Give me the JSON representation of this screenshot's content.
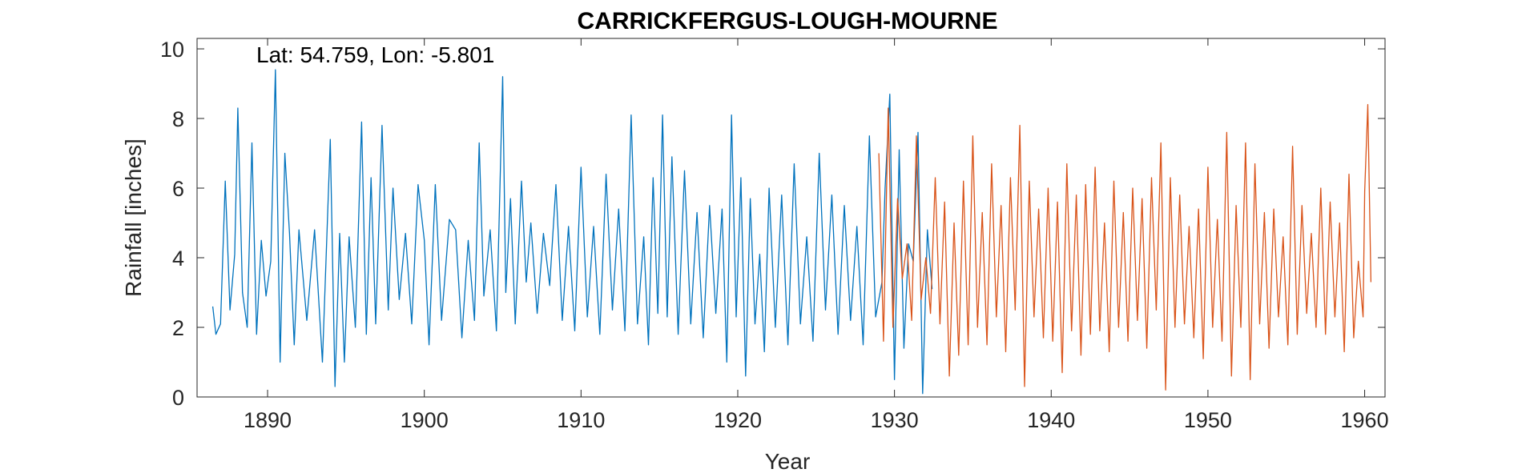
{
  "chart_data": {
    "type": "line",
    "title": "CARRICKFERGUS-LOUGH-MOURNE",
    "xlabel": "Year",
    "ylabel": "Rainfall [inches]",
    "annotation": "Lat: 54.759, Lon: -5.801",
    "xlim": [
      1885.5,
      1961.3
    ],
    "ylim": [
      0,
      10.3
    ],
    "x_ticks": [
      1890,
      1900,
      1910,
      1920,
      1930,
      1940,
      1950,
      1960
    ],
    "y_ticks": [
      0,
      2,
      4,
      6,
      8,
      10
    ],
    "grid": false,
    "legend": "none",
    "colors": {
      "series_1": "#0072bd",
      "series_2": "#d95319",
      "axes": "#262626"
    },
    "series": [
      {
        "x": [
          1886.5,
          1886.7,
          1887.0,
          1887.3,
          1887.6,
          1887.9,
          1888.1,
          1888.4,
          1888.7,
          1889.0,
          1889.3,
          1889.6,
          1889.9,
          1890.2,
          1890.5,
          1890.8,
          1891.1,
          1891.4,
          1891.7,
          1892.0,
          1892.5,
          1893.0,
          1893.5,
          1894.0,
          1894.3,
          1894.6,
          1894.9,
          1895.2,
          1895.6,
          1896.0,
          1896.3,
          1896.6,
          1896.9,
          1897.3,
          1897.7,
          1898.0,
          1898.4,
          1898.8,
          1899.2,
          1899.6,
          1900.0,
          1900.3,
          1900.7,
          1901.1,
          1901.6,
          1902.0,
          1902.4,
          1902.8,
          1903.2,
          1903.5,
          1903.8,
          1904.2,
          1904.6,
          1905.0,
          1905.2,
          1905.5,
          1905.8,
          1906.2,
          1906.5,
          1906.8,
          1907.2,
          1907.6,
          1908.0,
          1908.4,
          1908.8,
          1909.2,
          1909.6,
          1910.0,
          1910.4,
          1910.8,
          1911.2,
          1911.6,
          1912.0,
          1912.4,
          1912.8,
          1913.2,
          1913.6,
          1914.0,
          1914.3,
          1914.6,
          1914.9,
          1915.2,
          1915.5,
          1915.8,
          1916.2,
          1916.6,
          1917.0,
          1917.4,
          1917.8,
          1918.2,
          1918.6,
          1919.0,
          1919.3,
          1919.6,
          1919.9,
          1920.2,
          1920.5,
          1920.8,
          1921.1,
          1921.4,
          1921.7,
          1922.0,
          1922.4,
          1922.8,
          1923.2,
          1923.6,
          1924.0,
          1924.4,
          1924.8,
          1925.2,
          1925.6,
          1926.0,
          1926.4,
          1926.8,
          1927.2,
          1927.6,
          1928.0,
          1928.4,
          1928.8,
          1929.2,
          1929.4,
          1929.7,
          1930.0,
          1930.3,
          1930.6,
          1930.9,
          1931.2,
          1931.5,
          1931.8,
          1932.1,
          1932.4
        ],
        "y": [
          2.6,
          1.8,
          2.1,
          6.2,
          2.5,
          4.1,
          8.3,
          3.0,
          2.0,
          7.3,
          1.8,
          4.5,
          2.9,
          3.9,
          9.4,
          1.0,
          7.0,
          4.7,
          1.5,
          4.8,
          2.2,
          4.8,
          1.0,
          7.4,
          0.3,
          4.7,
          1.0,
          4.6,
          2.0,
          7.9,
          1.8,
          6.3,
          2.1,
          7.8,
          2.5,
          6.0,
          2.8,
          4.7,
          2.1,
          6.1,
          4.5,
          1.5,
          6.1,
          2.2,
          5.1,
          4.8,
          1.7,
          4.5,
          2.2,
          7.3,
          2.9,
          4.8,
          1.9,
          9.2,
          3.0,
          5.7,
          2.1,
          6.2,
          3.3,
          5.0,
          2.4,
          4.7,
          3.2,
          6.1,
          2.2,
          4.9,
          1.9,
          6.6,
          2.3,
          4.9,
          1.8,
          6.4,
          2.5,
          5.4,
          1.9,
          8.1,
          2.1,
          4.6,
          1.5,
          6.3,
          2.4,
          8.1,
          2.3,
          6.9,
          1.8,
          6.5,
          2.1,
          5.3,
          1.7,
          5.5,
          2.4,
          5.4,
          1.0,
          8.1,
          2.3,
          6.3,
          0.6,
          5.7,
          2.1,
          4.1,
          1.3,
          6.0,
          2.0,
          5.8,
          1.5,
          6.7,
          2.1,
          4.6,
          1.6,
          7.0,
          2.5,
          5.8,
          1.8,
          5.5,
          2.2,
          4.9,
          1.5,
          7.5,
          2.3,
          3.3,
          6.0,
          8.7,
          0.5,
          7.1,
          1.4,
          4.4,
          3.9,
          7.6,
          0.1,
          4.8,
          3.1
        ]
      },
      {
        "x": [
          1929.0,
          1929.3,
          1929.6,
          1929.9,
          1930.2,
          1930.5,
          1930.8,
          1931.1,
          1931.4,
          1931.7,
          1932.0,
          1932.3,
          1932.6,
          1932.9,
          1933.2,
          1933.5,
          1933.8,
          1934.1,
          1934.4,
          1934.7,
          1935.0,
          1935.3,
          1935.6,
          1935.9,
          1936.2,
          1936.5,
          1936.8,
          1937.1,
          1937.4,
          1937.7,
          1938.0,
          1938.3,
          1938.6,
          1938.9,
          1939.2,
          1939.5,
          1939.8,
          1940.1,
          1940.4,
          1940.7,
          1941.0,
          1941.3,
          1941.6,
          1941.9,
          1942.2,
          1942.5,
          1942.8,
          1943.1,
          1943.4,
          1943.7,
          1944.0,
          1944.3,
          1944.6,
          1944.9,
          1945.2,
          1945.5,
          1945.8,
          1946.1,
          1946.4,
          1946.7,
          1947.0,
          1947.3,
          1947.6,
          1947.9,
          1948.2,
          1948.5,
          1948.8,
          1949.1,
          1949.4,
          1949.7,
          1950.0,
          1950.3,
          1950.6,
          1950.9,
          1951.2,
          1951.5,
          1951.8,
          1952.1,
          1952.4,
          1952.7,
          1953.0,
          1953.3,
          1953.6,
          1953.9,
          1954.2,
          1954.5,
          1954.8,
          1955.1,
          1955.4,
          1955.7,
          1956.0,
          1956.3,
          1956.6,
          1956.9,
          1957.2,
          1957.5,
          1957.8,
          1958.1,
          1958.4,
          1958.7,
          1959.0,
          1959.3,
          1959.6,
          1959.9,
          1960.0,
          1960.2,
          1960.4
        ],
        "y": [
          7.0,
          1.6,
          8.3,
          2.0,
          5.7,
          3.4,
          4.4,
          2.2,
          7.5,
          2.8,
          4.0,
          2.4,
          6.3,
          2.1,
          5.6,
          0.6,
          5.0,
          1.2,
          6.2,
          1.5,
          7.5,
          2.0,
          5.3,
          1.5,
          6.7,
          2.3,
          5.5,
          1.3,
          6.3,
          2.5,
          7.8,
          0.3,
          6.2,
          2.3,
          5.4,
          1.7,
          6.0,
          1.6,
          5.6,
          0.7,
          6.7,
          1.9,
          5.8,
          1.2,
          6.1,
          1.8,
          6.6,
          1.9,
          5.0,
          1.3,
          6.2,
          2.0,
          5.3,
          1.6,
          6.0,
          2.2,
          5.7,
          1.4,
          6.3,
          2.5,
          7.3,
          0.2,
          6.3,
          2.0,
          5.8,
          2.1,
          4.9,
          1.7,
          5.4,
          1.1,
          6.6,
          2.0,
          5.1,
          1.6,
          7.6,
          0.6,
          5.5,
          2.0,
          7.3,
          0.5,
          6.7,
          2.1,
          5.3,
          1.4,
          5.4,
          2.3,
          4.6,
          1.5,
          7.2,
          1.8,
          5.5,
          2.4,
          4.7,
          2.0,
          6.0,
          1.8,
          5.6,
          2.3,
          5.0,
          1.3,
          6.4,
          1.7,
          3.9,
          2.3,
          5.9,
          8.4,
          3.3
        ]
      }
    ]
  }
}
